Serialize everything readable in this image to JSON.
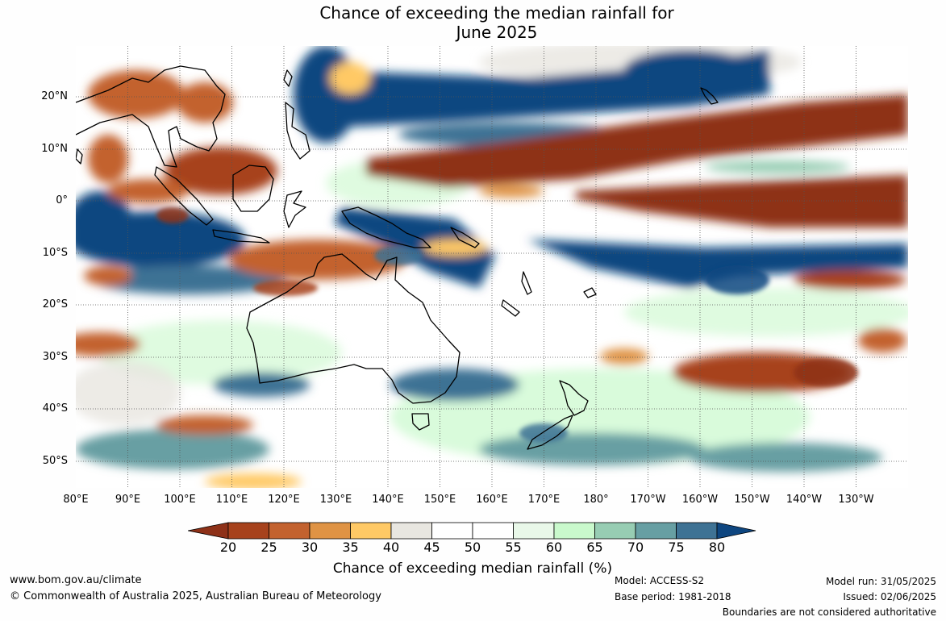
{
  "title": {
    "line1": "Chance of exceeding the median rainfall for",
    "line2": "June 2025"
  },
  "map": {
    "latitude_labels": [
      "20°N",
      "10°N",
      "0°",
      "10°S",
      "20°S",
      "30°S",
      "40°S",
      "50°S"
    ],
    "longitude_labels": [
      "80°E",
      "90°E",
      "100°E",
      "110°E",
      "120°E",
      "130°E",
      "140°E",
      "150°E",
      "160°E",
      "170°E",
      "180°",
      "170°W",
      "160°W",
      "150°W",
      "140°W",
      "130°W"
    ],
    "extent": {
      "lon_min": 80,
      "lon_max": 240,
      "lat_min": -55,
      "lat_max": 30
    },
    "graticule_step_degrees": 10,
    "graticule_style": "dotted"
  },
  "colorbar": {
    "tick_labels": [
      "20",
      "25",
      "30",
      "35",
      "40",
      "45",
      "50",
      "55",
      "60",
      "65",
      "70",
      "75",
      "80"
    ],
    "under_color": "#8e3118",
    "over_color": "#0e4680",
    "colors": [
      "#a7421c",
      "#c3622f",
      "#df9344",
      "#ffc965",
      "#e8e6e0",
      "#ffffff",
      "#ffffff",
      "#e9f8e9",
      "#c9f9cc",
      "#97cdb3",
      "#679fa3",
      "#3e7294"
    ],
    "label": "Chance of exceeding median rainfall (%)"
  },
  "footer": {
    "website": "www.bom.gov.au/climate",
    "copyright": "© Commonwealth of Australia 2025, Australian Bureau of Meteorology",
    "model": "Model: ACCESS-S2",
    "base_period": "Base period: 1981-2018",
    "model_run": "Model run: 31/05/2025",
    "issued": "Issued: 02/06/2025",
    "disclaimer": "Boundaries are not considered authoritative"
  }
}
